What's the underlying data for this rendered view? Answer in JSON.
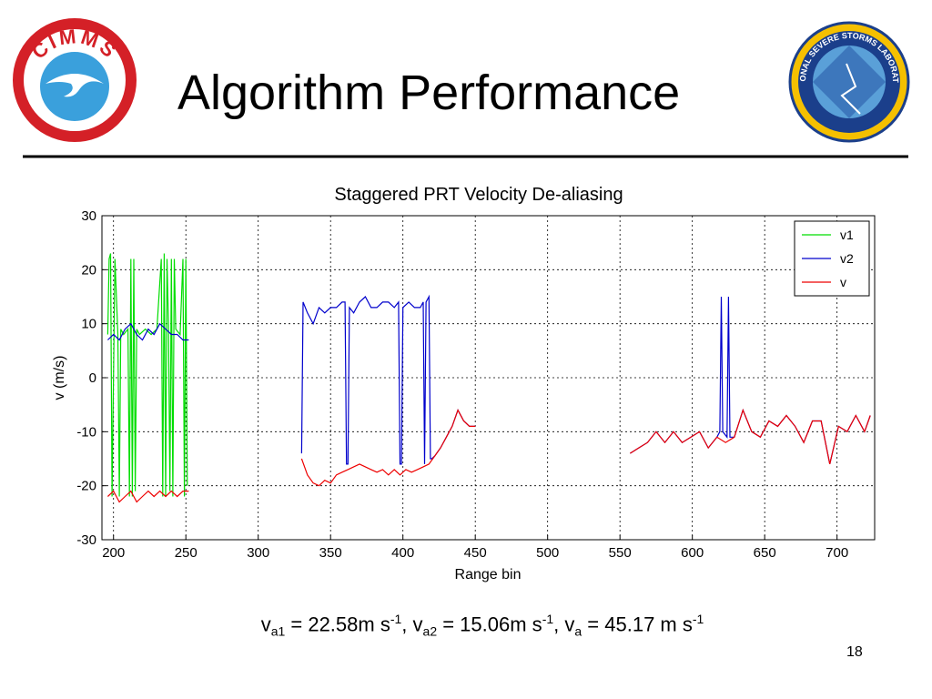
{
  "slide": {
    "title": "Algorithm Performance",
    "page_number": "18",
    "logo_left_text": "CIMMS",
    "logo_right_text": "NATIONAL SEVERE STORMS LABORATORY"
  },
  "chart_data": {
    "type": "line",
    "title": "Staggered PRT Velocity De-aliasing",
    "x_label": "Range bin",
    "y_label": "v (m/s)",
    "xlim": [
      192,
      726
    ],
    "ylim": [
      -30,
      30
    ],
    "xticks": [
      200,
      250,
      300,
      350,
      400,
      450,
      500,
      550,
      600,
      650,
      700
    ],
    "yticks": [
      -30,
      -20,
      -10,
      0,
      10,
      20,
      30
    ],
    "grid": true,
    "legend": "upper right",
    "series": [
      {
        "name": "v1",
        "color": "#00dd00",
        "x": [
          196,
          197,
          198,
          199,
          201,
          203,
          204,
          205,
          207,
          210,
          211,
          212,
          213,
          214,
          215,
          216,
          218,
          222,
          226,
          230,
          233,
          234,
          235,
          236,
          237,
          238,
          239,
          240,
          241,
          242,
          243,
          246,
          248,
          249,
          250,
          251
        ],
        "values": [
          8,
          22,
          23,
          -22,
          22,
          8,
          -22,
          9,
          8,
          9,
          -22,
          22,
          -22,
          22,
          -21,
          9,
          8,
          9,
          8,
          9,
          22,
          -22,
          23,
          -22,
          22,
          10,
          -21,
          22,
          -22,
          22,
          9,
          8,
          22,
          -22,
          22,
          -20
        ]
      },
      {
        "name": "v2",
        "color": "#0000cc",
        "x": [
          196,
          200,
          204,
          208,
          212,
          216,
          220,
          224,
          228,
          232,
          236,
          240,
          244,
          248,
          252,
          290,
          330,
          331,
          334,
          338,
          342,
          346,
          350,
          354,
          358,
          360,
          361,
          362,
          363,
          366,
          370,
          374,
          378,
          382,
          386,
          390,
          394,
          397,
          398,
          399,
          400,
          404,
          408,
          412,
          414,
          415,
          416,
          418,
          419,
          420,
          422,
          426,
          430,
          434,
          438,
          442,
          446,
          450,
          500,
          557,
          563,
          569,
          575,
          581,
          587,
          593,
          599,
          605,
          611,
          617,
          619,
          620,
          621,
          624,
          625,
          626,
          629,
          635,
          641,
          647,
          653,
          659,
          665,
          671,
          677,
          683,
          689,
          695,
          701,
          707,
          713,
          719,
          723
        ],
        "values": [
          7,
          8,
          7,
          9,
          10,
          8,
          7,
          9,
          8,
          10,
          9,
          8,
          8,
          7,
          7,
          null,
          -14,
          14,
          12,
          10,
          13,
          12,
          13,
          13,
          14,
          14,
          -16,
          -16,
          13,
          12,
          14,
          15,
          13,
          13,
          14,
          14,
          13,
          14,
          -16,
          -16,
          13,
          14,
          13,
          13,
          14,
          -16,
          14,
          15,
          -15,
          -15,
          -14.5,
          -13,
          -11,
          -9,
          -6,
          -8,
          -9,
          -9,
          null,
          -14,
          -13,
          -12,
          -10,
          -12,
          -10,
          -12,
          -11,
          -10,
          -13,
          -11,
          -10,
          15,
          -10,
          -11,
          15,
          -11,
          -11,
          -6,
          -10,
          -11,
          -8,
          -9,
          -7,
          -9,
          -12,
          -8,
          -8,
          -16,
          -9,
          -10,
          -7,
          -10,
          -7
        ]
      },
      {
        "name": "v",
        "color": "#ee0000",
        "x": [
          196,
          200,
          204,
          208,
          212,
          216,
          220,
          224,
          228,
          232,
          236,
          240,
          244,
          248,
          252,
          290,
          330,
          334,
          338,
          342,
          346,
          350,
          354,
          358,
          362,
          366,
          370,
          374,
          378,
          382,
          386,
          390,
          394,
          398,
          402,
          406,
          410,
          414,
          418,
          422,
          426,
          430,
          434,
          438,
          442,
          446,
          450,
          500,
          557,
          563,
          569,
          575,
          581,
          587,
          593,
          599,
          605,
          611,
          617,
          623,
          629,
          635,
          641,
          647,
          653,
          659,
          665,
          671,
          677,
          683,
          689,
          695,
          701,
          707,
          713,
          719,
          723
        ],
        "values": [
          -22,
          -21,
          -23,
          -22,
          -21,
          -23,
          -22,
          -21,
          -22,
          -21,
          -22,
          -21,
          -22,
          -21,
          -21,
          null,
          -15,
          -18,
          -19.5,
          -20,
          -19,
          -19.5,
          -18,
          -17.5,
          -17,
          -16.5,
          -16,
          -16.5,
          -17,
          -17.5,
          -17,
          -18,
          -17,
          -18,
          -17,
          -17.5,
          -17,
          -16.5,
          -16,
          -14.5,
          -13,
          -11,
          -9,
          -6,
          -8,
          -9,
          -9,
          null,
          -14,
          -13,
          -12,
          -10,
          -12,
          -10,
          -12,
          -11,
          -10,
          -13,
          -11,
          -12,
          -11,
          -6,
          -10,
          -11,
          -8,
          -9,
          -7,
          -9,
          -12,
          -8,
          -8,
          -16,
          -9,
          -10,
          -7,
          -10,
          -7
        ]
      }
    ]
  },
  "annotation": {
    "parts": [
      "v",
      "a1",
      " = 22.58m s",
      "-1",
      ", v",
      "a2",
      " = 15.06m s",
      "-1",
      ", v",
      "a",
      " = 45.17 m s",
      "-1"
    ]
  }
}
